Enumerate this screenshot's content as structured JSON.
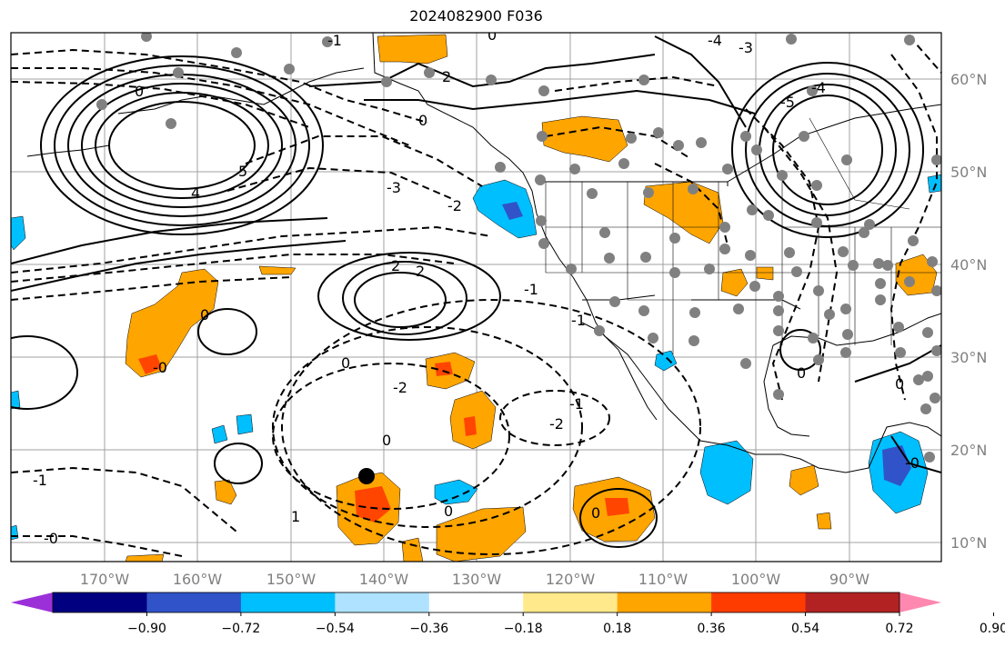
{
  "title": "2024082900 F036",
  "lon_ticks": [
    "170°W",
    "160°W",
    "150°W",
    "140°W",
    "130°W",
    "120°W",
    "110°W",
    "100°W",
    "90°W"
  ],
  "lat_ticks": [
    "60°N",
    "50°N",
    "40°N",
    "30°N",
    "20°N",
    "10°N"
  ],
  "contour_labels": {
    "alaska_high": [
      "5",
      "4",
      "0",
      "0",
      "0"
    ],
    "pacific": [
      "-3",
      "-2",
      "-1",
      "-1",
      "2",
      "2",
      "1"
    ],
    "southwest": [
      "0",
      "-0",
      "-2",
      "-1",
      "-2",
      "0",
      "-1",
      "-0",
      "0",
      "0",
      "1",
      "-0"
    ],
    "north": [
      "2",
      "0",
      "0",
      "-1",
      "-4",
      "-3",
      "-5",
      "-4",
      "0"
    ]
  },
  "colorbar": {
    "ticks": [
      "−0.90",
      "−0.72",
      "−0.54",
      "−0.36",
      "−0.18",
      "0.18",
      "0.36",
      "0.54",
      "0.72",
      "0.90"
    ],
    "colors": [
      "#9b30d9",
      "#000080",
      "#3153c9",
      "#00bfff",
      "#aee2ff",
      "#ffffff",
      "#ffe98a",
      "#ffa500",
      "#ff3c00",
      "#b22222",
      "#ff88b0"
    ]
  },
  "colors": {
    "positive_fill": "#ffa500",
    "positive_core": "#ff4500",
    "negative_fill": "#00bfff",
    "negative_core": "#3153c9",
    "station_dot": "#808080",
    "storm_marker": "#000000"
  },
  "icons": {
    "storm_marker": "black-dot",
    "stations": "gray-dots"
  }
}
